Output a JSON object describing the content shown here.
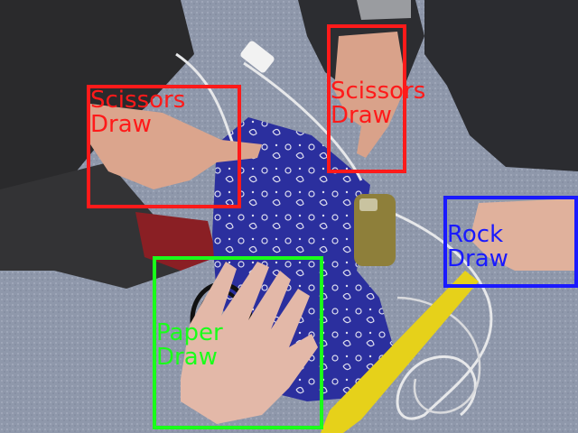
{
  "detections": [
    {
      "gesture": "Scissors",
      "result": "Draw",
      "color": "#ff1a1a"
    },
    {
      "gesture": "Scissors",
      "result": "Draw",
      "color": "#ff1a1a"
    },
    {
      "gesture": "Rock",
      "result": "Draw",
      "color": "#1a1aff"
    },
    {
      "gesture": "Paper",
      "result": "Draw",
      "color": "#1aff1a"
    }
  ]
}
